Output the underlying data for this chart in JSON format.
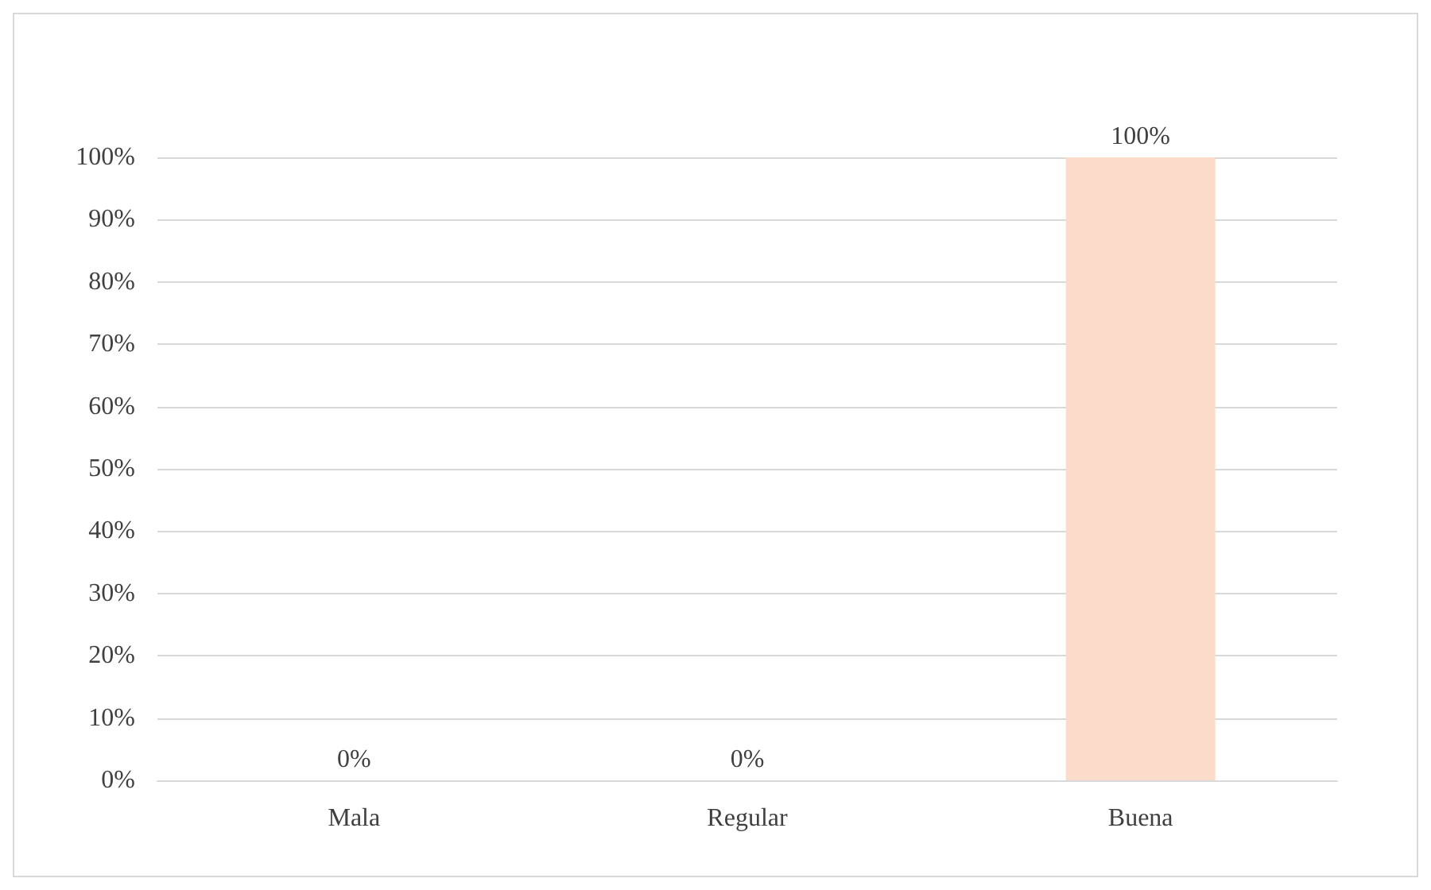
{
  "chart_data": {
    "type": "bar",
    "categories": [
      "Mala",
      "Regular",
      "Buena"
    ],
    "values": [
      0,
      0,
      100
    ],
    "colors": [
      "#2f4f8f",
      "#8ba77c",
      "#fbdccb"
    ],
    "value_labels": [
      "0%",
      "0%",
      "100%"
    ],
    "ylim": [
      0,
      100
    ],
    "yticks": [
      {
        "value": 0,
        "label": "0%"
      },
      {
        "value": 10,
        "label": "10%"
      },
      {
        "value": 20,
        "label": "20%"
      },
      {
        "value": 30,
        "label": "30%"
      },
      {
        "value": 40,
        "label": "40%"
      },
      {
        "value": 50,
        "label": "50%"
      },
      {
        "value": 60,
        "label": "60%"
      },
      {
        "value": 70,
        "label": "70%"
      },
      {
        "value": 80,
        "label": "80%"
      },
      {
        "value": 90,
        "label": "90%"
      },
      {
        "value": 100,
        "label": "100%"
      }
    ],
    "grid": "y"
  }
}
